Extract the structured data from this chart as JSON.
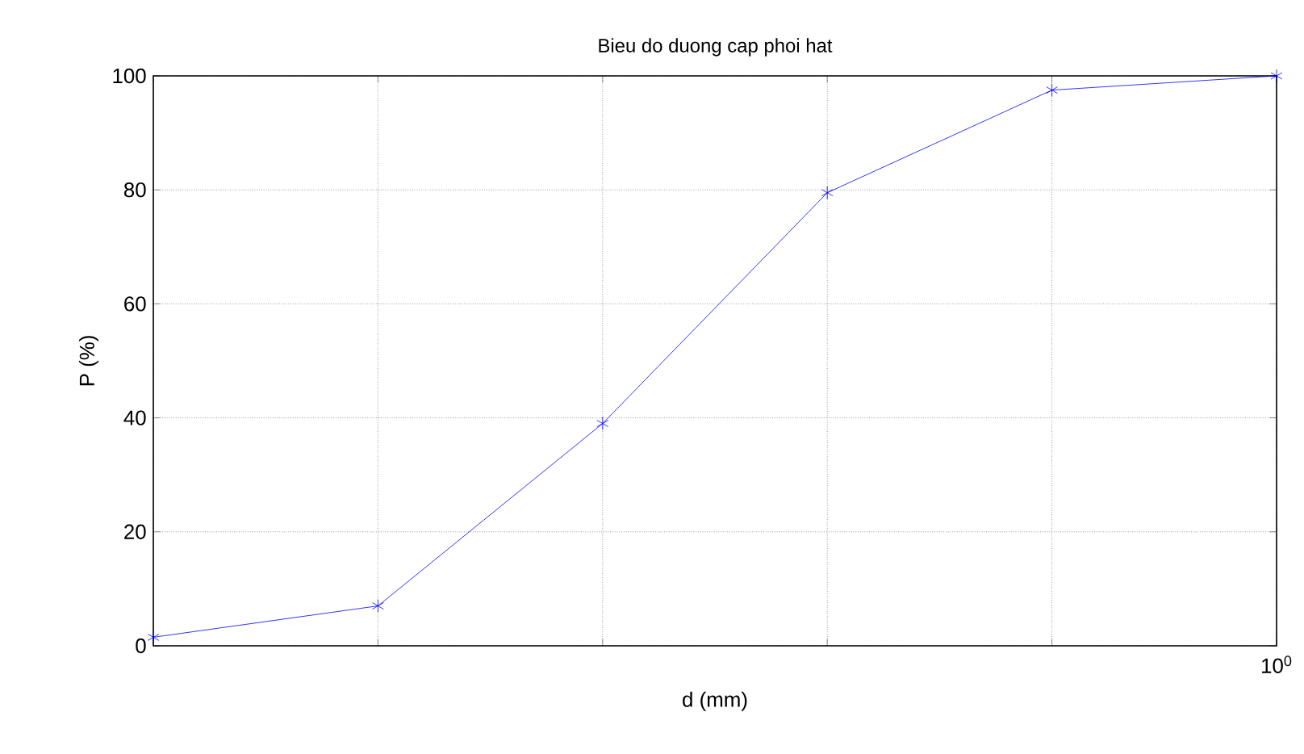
{
  "chart_data": {
    "type": "line",
    "title": "Bieu do duong cap phoi hat",
    "xlabel": "d (mm)",
    "ylabel": "P (%)",
    "categories": [
      null,
      null,
      null,
      null,
      null,
      null
    ],
    "series": [
      {
        "color": "#0000ff",
        "values": [
          1.5,
          7,
          39,
          79.5,
          97.5,
          100
        ]
      }
    ],
    "annotations": [
      "10$^{0}$"
    ],
    "ylim": [
      0,
      100
    ],
    "yticks": [
      0,
      20,
      40,
      60,
      80,
      100
    ],
    "grid": true,
    "marker": "cross",
    "line_style": "solid"
  }
}
